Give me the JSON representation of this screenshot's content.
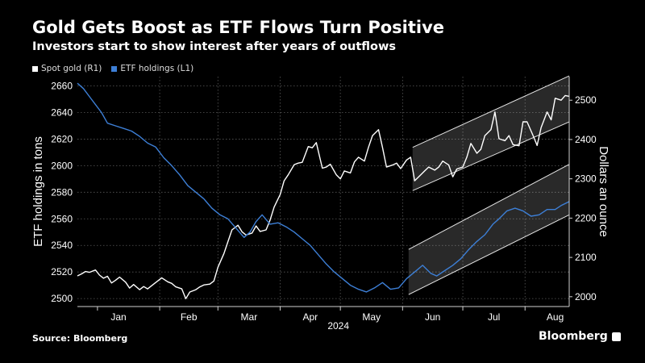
{
  "title": "Gold Gets Boost as ETF Flows Turn Positive",
  "subtitle": "Investors start to show interest after years of outflows",
  "source": "Source: Bloomberg",
  "brand": "Bloomberg",
  "colors": {
    "background": "#000000",
    "gold": "#ffffff",
    "etf": "#3d7fd6",
    "grid": "#5a5a5a"
  },
  "chart_data": {
    "type": "line",
    "x_axis": {
      "labels": [
        "Jan",
        "Feb",
        "Mar",
        "Apr",
        "May",
        "Jun",
        "Jul",
        "Aug"
      ],
      "year_label": "2024",
      "month_starts": [
        "2024-01-01",
        "2024-02-01",
        "2024-03-01",
        "2024-04-01",
        "2024-05-01",
        "2024-06-01",
        "2024-07-01",
        "2024-08-01",
        "2024-09-01"
      ],
      "range": [
        "2023-12-22",
        "2024-08-23"
      ]
    },
    "y_left": {
      "label": "ETF holdings in tons",
      "ticks": [
        2500,
        2520,
        2540,
        2560,
        2580,
        2600,
        2620,
        2640,
        2660
      ],
      "range": [
        2494,
        2667
      ]
    },
    "y_right": {
      "label": "Dollars an ounce",
      "ticks": [
        2000,
        2100,
        2200,
        2300,
        2400,
        2500
      ],
      "range": [
        1975,
        2560
      ]
    },
    "grid": true,
    "legend": "top-left",
    "series": [
      {
        "name": "Spot gold (R1)",
        "axis": "right",
        "points": [
          [
            "2023-12-22",
            2053
          ],
          [
            "2023-12-24",
            2058
          ],
          [
            "2023-12-26",
            2064
          ],
          [
            "2023-12-28",
            2062
          ],
          [
            "2023-12-31",
            2068
          ],
          [
            "2024-01-02",
            2055
          ],
          [
            "2024-01-04",
            2047
          ],
          [
            "2024-01-06",
            2052
          ],
          [
            "2024-01-08",
            2035
          ],
          [
            "2024-01-10",
            2042
          ],
          [
            "2024-01-12",
            2050
          ],
          [
            "2024-01-15",
            2037
          ],
          [
            "2024-01-17",
            2022
          ],
          [
            "2024-01-19",
            2031
          ],
          [
            "2024-01-22",
            2018
          ],
          [
            "2024-01-24",
            2026
          ],
          [
            "2024-01-26",
            2020
          ],
          [
            "2024-01-29",
            2032
          ],
          [
            "2024-01-31",
            2040
          ],
          [
            "2024-02-02",
            2048
          ],
          [
            "2024-02-05",
            2038
          ],
          [
            "2024-02-07",
            2034
          ],
          [
            "2024-02-09",
            2025
          ],
          [
            "2024-02-12",
            2020
          ],
          [
            "2024-02-14",
            1995
          ],
          [
            "2024-02-16",
            2012
          ],
          [
            "2024-02-19",
            2018
          ],
          [
            "2024-02-21",
            2025
          ],
          [
            "2024-02-23",
            2030
          ],
          [
            "2024-02-26",
            2032
          ],
          [
            "2024-02-28",
            2040
          ],
          [
            "2024-03-01",
            2075
          ],
          [
            "2024-03-04",
            2110
          ],
          [
            "2024-03-06",
            2140
          ],
          [
            "2024-03-08",
            2170
          ],
          [
            "2024-03-11",
            2182
          ],
          [
            "2024-03-13",
            2165
          ],
          [
            "2024-03-15",
            2157
          ],
          [
            "2024-03-18",
            2162
          ],
          [
            "2024-03-20",
            2180
          ],
          [
            "2024-03-22",
            2166
          ],
          [
            "2024-03-25",
            2170
          ],
          [
            "2024-03-27",
            2195
          ],
          [
            "2024-03-29",
            2228
          ],
          [
            "2024-04-01",
            2260
          ],
          [
            "2024-04-03",
            2295
          ],
          [
            "2024-04-05",
            2310
          ],
          [
            "2024-04-08",
            2336
          ],
          [
            "2024-04-10",
            2340
          ],
          [
            "2024-04-12",
            2342
          ],
          [
            "2024-04-15",
            2382
          ],
          [
            "2024-04-17",
            2379
          ],
          [
            "2024-04-19",
            2392
          ],
          [
            "2024-04-22",
            2327
          ],
          [
            "2024-04-24",
            2330
          ],
          [
            "2024-04-26",
            2337
          ],
          [
            "2024-04-29",
            2310
          ],
          [
            "2024-05-01",
            2300
          ],
          [
            "2024-05-03",
            2320
          ],
          [
            "2024-05-06",
            2315
          ],
          [
            "2024-05-08",
            2343
          ],
          [
            "2024-05-10",
            2355
          ],
          [
            "2024-05-13",
            2345
          ],
          [
            "2024-05-15",
            2380
          ],
          [
            "2024-05-17",
            2410
          ],
          [
            "2024-05-20",
            2425
          ],
          [
            "2024-05-22",
            2380
          ],
          [
            "2024-05-24",
            2330
          ],
          [
            "2024-05-27",
            2335
          ],
          [
            "2024-05-29",
            2340
          ],
          [
            "2024-05-31",
            2326
          ],
          [
            "2024-06-03",
            2348
          ],
          [
            "2024-06-05",
            2355
          ],
          [
            "2024-06-07",
            2295
          ],
          [
            "2024-06-10",
            2310
          ],
          [
            "2024-06-12",
            2320
          ],
          [
            "2024-06-14",
            2330
          ],
          [
            "2024-06-17",
            2322
          ],
          [
            "2024-06-19",
            2330
          ],
          [
            "2024-06-21",
            2345
          ],
          [
            "2024-06-24",
            2335
          ],
          [
            "2024-06-26",
            2305
          ],
          [
            "2024-06-28",
            2325
          ],
          [
            "2024-07-01",
            2330
          ],
          [
            "2024-07-03",
            2355
          ],
          [
            "2024-07-05",
            2390
          ],
          [
            "2024-07-08",
            2365
          ],
          [
            "2024-07-10",
            2375
          ],
          [
            "2024-07-12",
            2410
          ],
          [
            "2024-07-15",
            2425
          ],
          [
            "2024-07-17",
            2470
          ],
          [
            "2024-07-19",
            2402
          ],
          [
            "2024-07-22",
            2397
          ],
          [
            "2024-07-24",
            2410
          ],
          [
            "2024-07-26",
            2387
          ],
          [
            "2024-07-29",
            2384
          ],
          [
            "2024-07-31",
            2445
          ],
          [
            "2024-08-02",
            2445
          ],
          [
            "2024-08-05",
            2410
          ],
          [
            "2024-08-07",
            2385
          ],
          [
            "2024-08-09",
            2430
          ],
          [
            "2024-08-12",
            2470
          ],
          [
            "2024-08-14",
            2450
          ],
          [
            "2024-08-16",
            2505
          ],
          [
            "2024-08-19",
            2500
          ],
          [
            "2024-08-21",
            2512
          ],
          [
            "2024-08-23",
            2510
          ]
        ]
      },
      {
        "name": "ETF holdings (L1)",
        "axis": "left",
        "points": [
          [
            "2023-12-22",
            2662
          ],
          [
            "2023-12-25",
            2658
          ],
          [
            "2023-12-29",
            2650
          ],
          [
            "2024-01-03",
            2640
          ],
          [
            "2024-01-06",
            2632
          ],
          [
            "2024-01-10",
            2630
          ],
          [
            "2024-01-14",
            2628
          ],
          [
            "2024-01-18",
            2626
          ],
          [
            "2024-01-22",
            2622
          ],
          [
            "2024-01-26",
            2617
          ],
          [
            "2024-01-30",
            2614
          ],
          [
            "2024-02-03",
            2606
          ],
          [
            "2024-02-07",
            2600
          ],
          [
            "2024-02-11",
            2593
          ],
          [
            "2024-02-15",
            2585
          ],
          [
            "2024-02-19",
            2580
          ],
          [
            "2024-02-23",
            2575
          ],
          [
            "2024-02-27",
            2568
          ],
          [
            "2024-03-02",
            2563
          ],
          [
            "2024-03-06",
            2560
          ],
          [
            "2024-03-10",
            2553
          ],
          [
            "2024-03-14",
            2546
          ],
          [
            "2024-03-17",
            2550
          ],
          [
            "2024-03-20",
            2558
          ],
          [
            "2024-03-23",
            2563
          ],
          [
            "2024-03-27",
            2556
          ],
          [
            "2024-03-31",
            2557
          ],
          [
            "2024-04-04",
            2554
          ],
          [
            "2024-04-08",
            2550
          ],
          [
            "2024-04-12",
            2545
          ],
          [
            "2024-04-16",
            2540
          ],
          [
            "2024-04-20",
            2533
          ],
          [
            "2024-04-24",
            2526
          ],
          [
            "2024-04-28",
            2520
          ],
          [
            "2024-05-02",
            2515
          ],
          [
            "2024-05-06",
            2510
          ],
          [
            "2024-05-10",
            2507
          ],
          [
            "2024-05-14",
            2505
          ],
          [
            "2024-05-18",
            2508
          ],
          [
            "2024-05-22",
            2512
          ],
          [
            "2024-05-26",
            2507
          ],
          [
            "2024-05-30",
            2508
          ],
          [
            "2024-06-03",
            2515
          ],
          [
            "2024-06-07",
            2520
          ],
          [
            "2024-06-11",
            2525
          ],
          [
            "2024-06-15",
            2519
          ],
          [
            "2024-06-18",
            2517
          ],
          [
            "2024-06-22",
            2521
          ],
          [
            "2024-06-26",
            2525
          ],
          [
            "2024-06-30",
            2530
          ],
          [
            "2024-07-04",
            2537
          ],
          [
            "2024-07-08",
            2543
          ],
          [
            "2024-07-12",
            2548
          ],
          [
            "2024-07-16",
            2556
          ],
          [
            "2024-07-19",
            2560
          ],
          [
            "2024-07-23",
            2566
          ],
          [
            "2024-07-27",
            2568
          ],
          [
            "2024-07-31",
            2566
          ],
          [
            "2024-08-04",
            2562
          ],
          [
            "2024-08-08",
            2563
          ],
          [
            "2024-08-12",
            2567
          ],
          [
            "2024-08-16",
            2567
          ],
          [
            "2024-08-19",
            2570
          ],
          [
            "2024-08-23",
            2573
          ]
        ]
      }
    ],
    "bands": [
      {
        "name": "gold-channel",
        "axis": "right",
        "x": [
          "2024-06-06",
          "2024-08-23"
        ],
        "upper": [
          2380,
          2562
        ],
        "lower": [
          2270,
          2445
        ]
      },
      {
        "name": "etf-channel",
        "axis": "left",
        "x": [
          "2024-06-04",
          "2024-08-23"
        ],
        "upper": [
          2537,
          2601
        ],
        "lower": [
          2503,
          2563
        ]
      }
    ]
  }
}
